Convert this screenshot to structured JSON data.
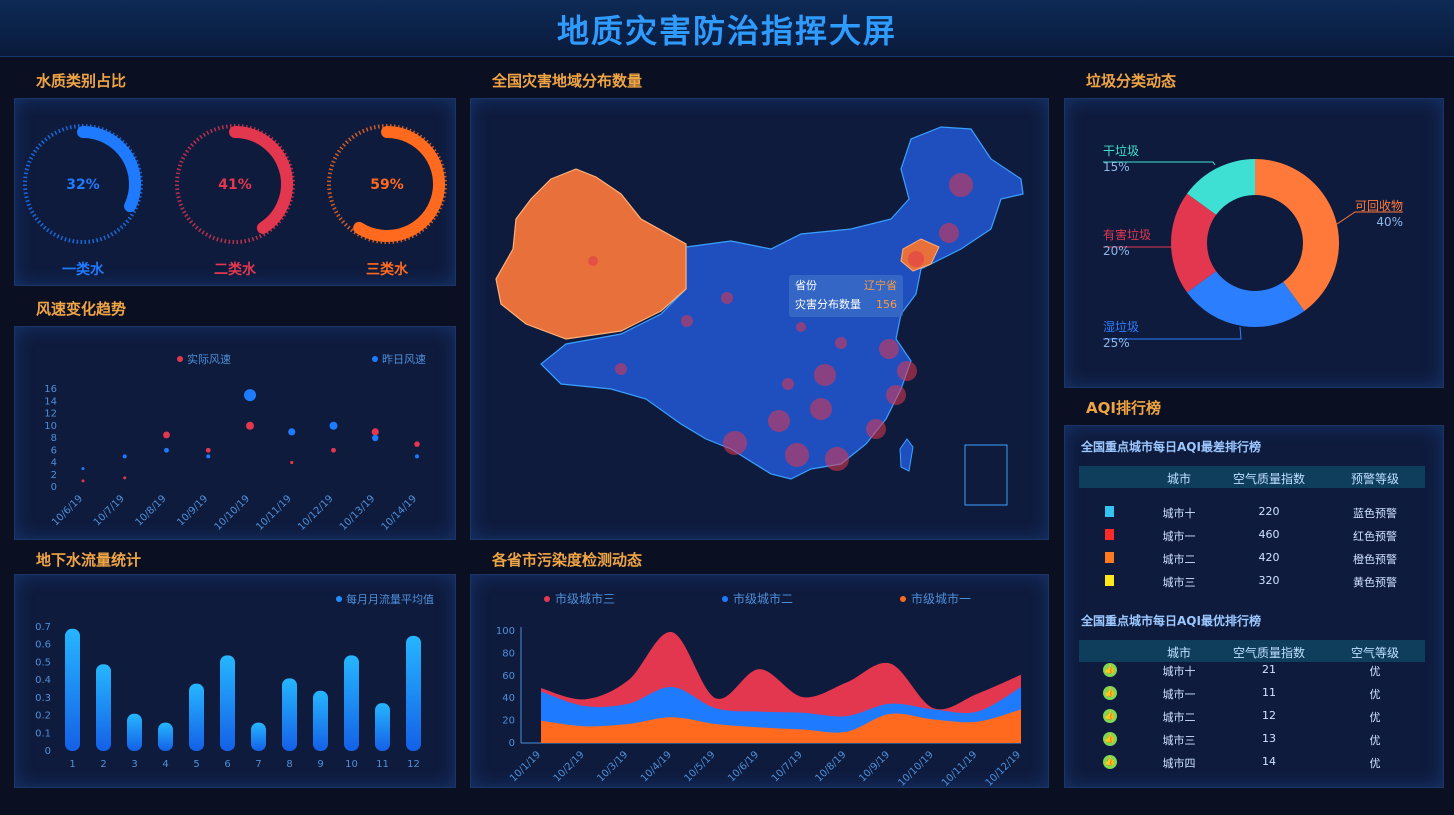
{
  "header": {
    "title": "地质灾害防治指挥大屏"
  },
  "sections": {
    "water_type": "水质类别占比",
    "wind": "风速变化趋势",
    "groundwater": "地下水流量统计",
    "map": "全国灾害地域分布数量",
    "pollution": "各省市污染度检测动态",
    "garbage": "垃圾分类动态",
    "aqi": "AQI排行榜"
  },
  "water_rings": [
    {
      "percent": 32,
      "label_pct": "32%",
      "name": "一类水",
      "color": "#1e7bff"
    },
    {
      "percent": 41,
      "label_pct": "41%",
      "name": "二类水",
      "color": "#e2374f"
    },
    {
      "percent": 59,
      "label_pct": "59%",
      "name": "三类水",
      "color": "#ff6a1f"
    }
  ],
  "map": {
    "tooltip_province_label": "省份",
    "tooltip_province_value": "辽宁省",
    "tooltip_count_label": "灾害分布数量",
    "tooltip_count_value": "156"
  },
  "chart_data": [
    {
      "id": "wind",
      "type": "scatter",
      "categories": [
        "10/6/19",
        "10/7/19",
        "10/8/19",
        "10/9/19",
        "10/10/19",
        "10/11/19",
        "10/12/19",
        "10/13/19",
        "10/14/19"
      ],
      "yticks": [
        "0",
        "2",
        "4",
        "6",
        "8",
        "10",
        "12",
        "14",
        "16"
      ],
      "ylim": [
        0,
        16
      ],
      "series": [
        {
          "name": "实际风速",
          "color": "#e2374f",
          "values": [
            1,
            1.5,
            8.5,
            6,
            10,
            4,
            6,
            9,
            7
          ]
        },
        {
          "name": "昨日风速",
          "color": "#1e7bff",
          "values": [
            3,
            5,
            6,
            5,
            15,
            9,
            10,
            8,
            5
          ]
        }
      ]
    },
    {
      "id": "groundwater",
      "type": "bar",
      "categories": [
        "1",
        "2",
        "3",
        "4",
        "5",
        "6",
        "7",
        "8",
        "9",
        "10",
        "11",
        "12"
      ],
      "yticks": [
        "0",
        "0.1",
        "0.2",
        "0.3",
        "0.4",
        "0.5",
        "0.6",
        "0.7"
      ],
      "ylim": [
        0,
        0.7
      ],
      "series": [
        {
          "name": "每月月流量平均值",
          "color": "#1e8fff",
          "values": [
            0.69,
            0.49,
            0.21,
            0.16,
            0.38,
            0.54,
            0.16,
            0.41,
            0.34,
            0.54,
            0.27,
            0.65
          ]
        }
      ]
    },
    {
      "id": "pollution",
      "type": "area",
      "categories": [
        "10/1/19",
        "10/2/19",
        "10/3/19",
        "10/4/19",
        "10/5/19",
        "10/6/19",
        "10/7/19",
        "10/8/19",
        "10/9/19",
        "10/10/19",
        "10/11/19",
        "10/12/19"
      ],
      "yticks": [
        "0",
        "20",
        "40",
        "60",
        "80",
        "100"
      ],
      "ylim": [
        0,
        100
      ],
      "series": [
        {
          "name": "市级城市三",
          "color": "#e2374f",
          "values": [
            49,
            39,
            56,
            99,
            40,
            66,
            41,
            54,
            71,
            31,
            44,
            61
          ]
        },
        {
          "name": "市级城市二",
          "color": "#1e7bff",
          "values": [
            46,
            33,
            35,
            50,
            31,
            28,
            27,
            24,
            35,
            30,
            28,
            50
          ]
        },
        {
          "name": "市级城市一",
          "color": "#ff6a1f",
          "values": [
            20,
            15,
            17,
            23,
            17,
            14,
            12,
            10,
            26,
            21,
            19,
            30
          ]
        }
      ]
    },
    {
      "id": "garbage",
      "type": "pie",
      "series": [
        {
          "name": "可回收物",
          "pct": "40%",
          "value": 40,
          "color": "#ff7a3a"
        },
        {
          "name": "湿垃圾",
          "pct": "25%",
          "value": 25,
          "color": "#2b7fff"
        },
        {
          "name": "有害垃圾",
          "pct": "20%",
          "value": 20,
          "color": "#e2374f"
        },
        {
          "name": "干垃圾",
          "pct": "15%",
          "value": 15,
          "color": "#3de0d2"
        }
      ]
    }
  ],
  "aqi": {
    "worst": {
      "title": "全国重点城市每日AQI最差排行榜",
      "headers": [
        "城市",
        "空气质量指数",
        "预警等级"
      ],
      "rows": [
        {
          "city": "城市十",
          "index": "220",
          "level": "蓝色预警",
          "flag": "#35c3f0"
        },
        {
          "city": "城市一",
          "index": "460",
          "level": "红色预警",
          "flag": "#ff2b2b"
        },
        {
          "city": "城市二",
          "index": "420",
          "level": "橙色预警",
          "flag": "#ff7a1f"
        },
        {
          "city": "城市三",
          "index": "320",
          "level": "黄色预警",
          "flag": "#ffe81a"
        }
      ]
    },
    "best": {
      "title": "全国重点城市每日AQI最优排行榜",
      "headers": [
        "城市",
        "空气质量指数",
        "空气等级"
      ],
      "rows": [
        {
          "city": "城市十",
          "index": "21",
          "level": "优"
        },
        {
          "city": "城市一",
          "index": "11",
          "level": "优"
        },
        {
          "city": "城市二",
          "index": "12",
          "level": "优"
        },
        {
          "city": "城市三",
          "index": "13",
          "level": "优"
        },
        {
          "city": "城市四",
          "index": "14",
          "level": "优"
        }
      ]
    }
  }
}
